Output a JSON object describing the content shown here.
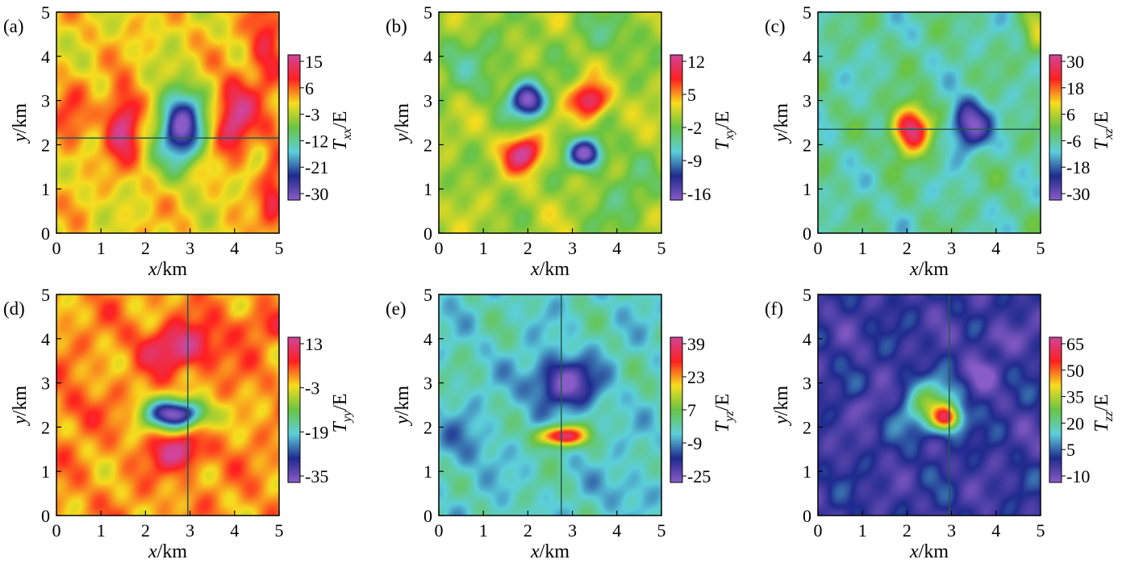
{
  "chart_data": [
    {
      "type": "heatmap",
      "panel_label": "(a)",
      "xlabel": "x/km",
      "ylabel": "y/km",
      "xlim": [
        0,
        5
      ],
      "ylim": [
        0,
        5
      ],
      "x_ticks": [
        "0",
        "1",
        "2",
        "3",
        "4",
        "5"
      ],
      "y_ticks": [
        "0",
        "1",
        "2",
        "3",
        "4",
        "5"
      ],
      "colorbar": {
        "label_symbol": "T",
        "label_sub": "xx",
        "label_unit": "/E",
        "ticks": [
          "15",
          "6",
          "-3",
          "-12",
          "-21",
          "-30"
        ],
        "range": [
          -30,
          15
        ]
      },
      "profile_line": {
        "orientation": "horizontal",
        "y": 2.15
      },
      "background": 0,
      "anomalies": [
        {
          "x": 1.5,
          "y": 2.5,
          "sx": 0.35,
          "sy": 0.7,
          "value": 15
        },
        {
          "x": 2.8,
          "y": 2.4,
          "sx": 0.45,
          "sy": 0.75,
          "value": -30
        },
        {
          "x": 4.0,
          "y": 2.6,
          "sx": 0.4,
          "sy": 0.75,
          "value": 14
        },
        {
          "x": 4.7,
          "y": 4.2,
          "sx": 0.35,
          "sy": 0.9,
          "value": 10
        },
        {
          "x": 4.85,
          "y": 1.0,
          "sx": 0.25,
          "sy": 1.2,
          "value": 8
        },
        {
          "x": 0.3,
          "y": 2.6,
          "sx": 0.4,
          "sy": 0.9,
          "value": 5
        }
      ]
    },
    {
      "type": "heatmap",
      "panel_label": "(b)",
      "xlabel": "x/km",
      "ylabel": "y/km",
      "xlim": [
        0,
        5
      ],
      "ylim": [
        0,
        5
      ],
      "x_ticks": [
        "0",
        "1",
        "2",
        "3",
        "4",
        "5"
      ],
      "y_ticks": [
        "0",
        "1",
        "2",
        "3",
        "4",
        "5"
      ],
      "colorbar": {
        "label_symbol": "T",
        "label_sub": "xy",
        "label_unit": "/E",
        "ticks": [
          "12",
          "5",
          "-2",
          "-9",
          "-16"
        ],
        "range": [
          -16,
          12
        ]
      },
      "profile_line": null,
      "background": 0,
      "anomalies": [
        {
          "x": 2.0,
          "y": 3.0,
          "sx": 0.35,
          "sy": 0.35,
          "value": -16
        },
        {
          "x": 3.4,
          "y": 3.0,
          "sx": 0.35,
          "sy": 0.35,
          "value": 12
        },
        {
          "x": 1.9,
          "y": 1.8,
          "sx": 0.38,
          "sy": 0.35,
          "value": 12
        },
        {
          "x": 3.3,
          "y": 1.8,
          "sx": 0.35,
          "sy": 0.3,
          "value": -16
        },
        {
          "x": 0.8,
          "y": 3.8,
          "sx": 0.9,
          "sy": 0.7,
          "value": -3
        },
        {
          "x": 3.8,
          "y": 4.5,
          "sx": 0.7,
          "sy": 0.5,
          "value": -3
        },
        {
          "x": 4.2,
          "y": 0.8,
          "sx": 0.6,
          "sy": 0.8,
          "value": -3
        }
      ]
    },
    {
      "type": "heatmap",
      "panel_label": "(c)",
      "xlabel": "x/km",
      "ylabel": "y/km",
      "xlim": [
        0,
        5
      ],
      "ylim": [
        0,
        5
      ],
      "x_ticks": [
        "0",
        "1",
        "2",
        "3",
        "4",
        "5"
      ],
      "y_ticks": [
        "0",
        "1",
        "2",
        "3",
        "4",
        "5"
      ],
      "colorbar": {
        "label_symbol": "T",
        "label_sub": "xz",
        "label_unit": "/E",
        "ticks": [
          "30",
          "18",
          "6",
          "-6",
          "-18",
          "-30"
        ],
        "range": [
          -30,
          30
        ]
      },
      "profile_line": {
        "orientation": "horizontal",
        "y": 2.35
      },
      "background": -6,
      "anomalies": [
        {
          "x": 2.1,
          "y": 2.35,
          "sx": 0.38,
          "sy": 0.48,
          "value": 30
        },
        {
          "x": 3.4,
          "y": 2.45,
          "sx": 0.38,
          "sy": 0.48,
          "value": -30
        },
        {
          "x": 4.9,
          "y": 4.5,
          "sx": 0.25,
          "sy": 0.6,
          "value": 4
        }
      ]
    },
    {
      "type": "heatmap",
      "panel_label": "(d)",
      "xlabel": "x/km",
      "ylabel": "y/km",
      "xlim": [
        0,
        5
      ],
      "ylim": [
        0,
        5
      ],
      "x_ticks": [
        "0",
        "1",
        "2",
        "3",
        "4",
        "5"
      ],
      "y_ticks": [
        "0",
        "1",
        "2",
        "3",
        "4",
        "5"
      ],
      "colorbar": {
        "label_symbol": "T",
        "label_sub": "yy",
        "label_unit": "/E",
        "ticks": [
          "13",
          "-3",
          "-19",
          "-35"
        ],
        "range": [
          -35,
          13
        ]
      },
      "profile_line": {
        "orientation": "vertical",
        "x": 2.95
      },
      "background": 0,
      "anomalies": [
        {
          "x": 2.8,
          "y": 3.8,
          "sx": 0.75,
          "sy": 0.45,
          "value": 12
        },
        {
          "x": 2.7,
          "y": 2.3,
          "sx": 0.6,
          "sy": 0.3,
          "value": -35
        },
        {
          "x": 2.75,
          "y": 1.45,
          "sx": 0.5,
          "sy": 0.35,
          "value": 13
        },
        {
          "x": 4.5,
          "y": 4.3,
          "sx": 0.6,
          "sy": 0.3,
          "value": 5
        },
        {
          "x": 0.4,
          "y": 2.4,
          "sx": 0.5,
          "sy": 0.4,
          "value": 4
        }
      ]
    },
    {
      "type": "heatmap",
      "panel_label": "(e)",
      "xlabel": "x/km",
      "ylabel": "y/km",
      "xlim": [
        0,
        5
      ],
      "ylim": [
        0,
        5
      ],
      "x_ticks": [
        "0",
        "1",
        "2",
        "3",
        "4",
        "5"
      ],
      "y_ticks": [
        "0",
        "1",
        "2",
        "3",
        "4",
        "5"
      ],
      "colorbar": {
        "label_symbol": "T",
        "label_sub": "yz",
        "label_unit": "/E",
        "ticks": [
          "39",
          "23",
          "7",
          "-9",
          "-25"
        ],
        "range": [
          -25,
          39
        ]
      },
      "profile_line": {
        "orientation": "vertical",
        "x": 2.75
      },
      "background": -2,
      "anomalies": [
        {
          "x": 2.8,
          "y": 3.0,
          "sx": 0.65,
          "sy": 0.5,
          "value": -25
        },
        {
          "x": 2.75,
          "y": 1.8,
          "sx": 0.45,
          "sy": 0.2,
          "value": 39
        },
        {
          "x": 0.6,
          "y": 1.6,
          "sx": 0.6,
          "sy": 0.6,
          "value": -8
        },
        {
          "x": 4.3,
          "y": 0.6,
          "sx": 0.5,
          "sy": 0.4,
          "value": -8
        }
      ]
    },
    {
      "type": "heatmap",
      "panel_label": "(f)",
      "xlabel": "x/km",
      "ylabel": "y/km",
      "xlim": [
        0,
        5
      ],
      "ylim": [
        0,
        5
      ],
      "x_ticks": [
        "0",
        "1",
        "2",
        "3",
        "4",
        "5"
      ],
      "y_ticks": [
        "0",
        "1",
        "2",
        "3",
        "4",
        "5"
      ],
      "colorbar": {
        "label_symbol": "T",
        "label_sub": "zz",
        "label_unit": "/E",
        "ticks": [
          "65",
          "50",
          "35",
          "20",
          "5",
          "-10"
        ],
        "range": [
          -10,
          65
        ]
      },
      "profile_line": {
        "orientation": "vertical",
        "x": 2.95
      },
      "background": 0,
      "anomalies": [
        {
          "x": 2.55,
          "y": 2.45,
          "sx": 0.55,
          "sy": 0.5,
          "value": 30
        },
        {
          "x": 2.9,
          "y": 2.2,
          "sx": 0.28,
          "sy": 0.25,
          "value": 40
        },
        {
          "x": 4.0,
          "y": 4.0,
          "sx": 0.4,
          "sy": 0.3,
          "value": -8
        },
        {
          "x": 3.6,
          "y": 3.2,
          "sx": 0.35,
          "sy": 0.3,
          "value": -8
        },
        {
          "x": 1.2,
          "y": 2.5,
          "sx": 0.3,
          "sy": 0.25,
          "value": -8
        }
      ]
    }
  ],
  "colormap": [
    "#8a5cc7",
    "#1f2a8e",
    "#5ccfdb",
    "#69c443",
    "#f6dd1e",
    "#ff2020",
    "#d0449a"
  ],
  "colors": {
    "line": "#1f5b55",
    "frame": "#000000"
  }
}
